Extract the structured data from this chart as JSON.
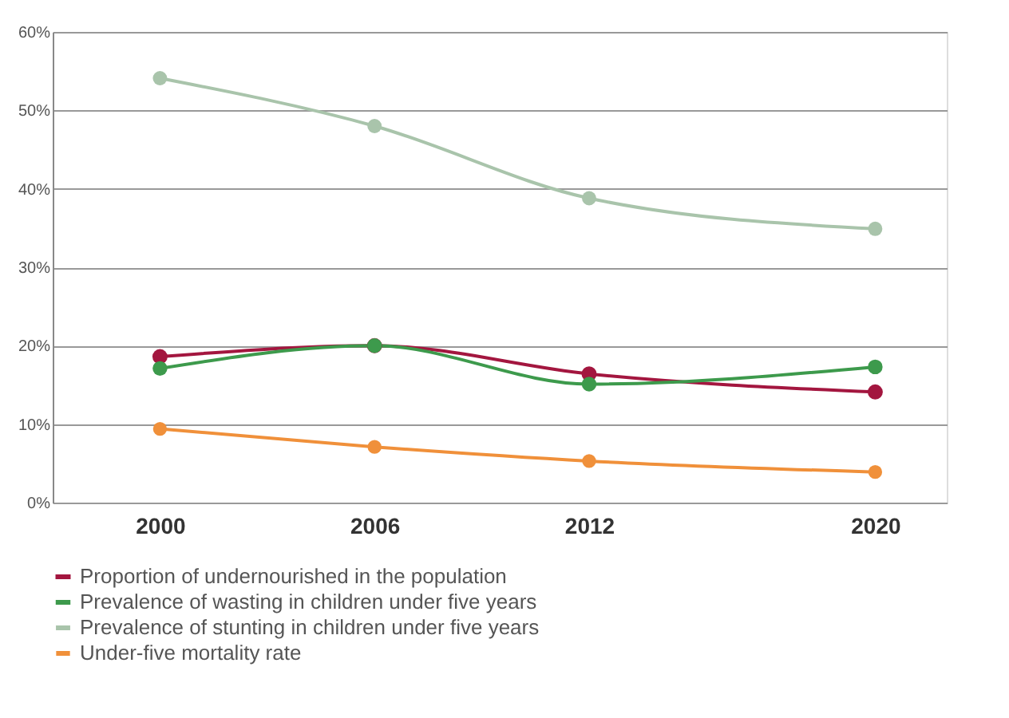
{
  "chart_data": {
    "type": "line",
    "x": [
      2000,
      2006,
      2012,
      2020
    ],
    "xlim": [
      1997,
      2022
    ],
    "xticks": [
      2000,
      2006,
      2012,
      2020
    ],
    "ylim": [
      0,
      60
    ],
    "yticks": [
      {
        "value": 0,
        "label": "0%"
      },
      {
        "value": 10,
        "label": "10%"
      },
      {
        "value": 20,
        "label": "20%"
      },
      {
        "value": 30,
        "label": "30%"
      },
      {
        "value": 40,
        "label": "40%"
      },
      {
        "value": 50,
        "label": "50%"
      },
      {
        "value": 60,
        "label": "60%"
      }
    ],
    "series": [
      {
        "name": "Proportion of undernourished in the population",
        "color": "#a3163f",
        "values": [
          18.6,
          20,
          16.4,
          14.1
        ]
      },
      {
        "name": "Prevalence of wasting in children under five years",
        "color": "#3d9a4c",
        "values": [
          17.1,
          20,
          15.1,
          17.3
        ]
      },
      {
        "name": "Prevalence of stunting in children under five years",
        "color": "#a9c4ab",
        "values": [
          54.1,
          48,
          38.8,
          34.9
        ]
      },
      {
        "name": "Under-five mortality rate",
        "color": "#f0903a",
        "values": [
          9.4,
          7.1,
          5.3,
          3.9
        ]
      }
    ],
    "grid": "y",
    "legend": "bottom",
    "marker": "circle",
    "line_style": "solid"
  }
}
